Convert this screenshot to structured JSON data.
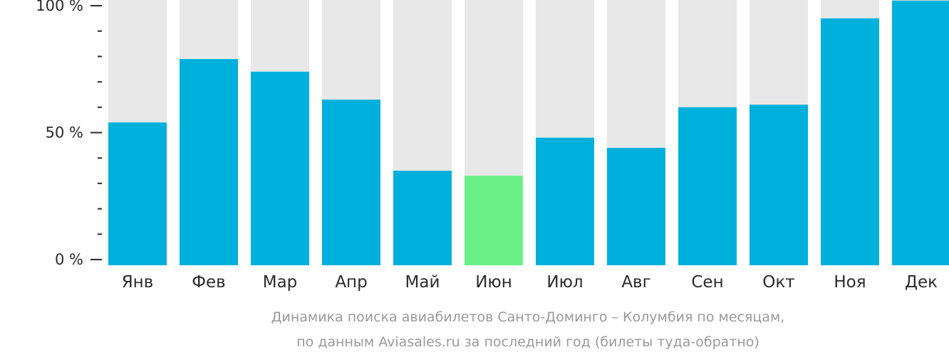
{
  "chart_data": {
    "type": "bar",
    "categories": [
      "Янв",
      "Фев",
      "Мар",
      "Апр",
      "Май",
      "Июн",
      "Июл",
      "Авг",
      "Сен",
      "Окт",
      "Ноя",
      "Дек"
    ],
    "values": [
      54,
      79,
      74,
      63,
      35,
      33,
      48,
      44,
      60,
      61,
      95,
      102
    ],
    "highlight_index": 5,
    "ylim": [
      0,
      100
    ],
    "y_ticks": [
      {
        "value": 100,
        "label": "100 %"
      },
      {
        "value": 50,
        "label": "50 %"
      },
      {
        "value": 0,
        "label": "0 %"
      }
    ],
    "y_minor_step": 10,
    "grid": false,
    "caption": [
      "Динамика поиска авиабилетов Санто-Доминго – Колумбия по месяцам,",
      "по данным Aviasales.ru за последний год (билеты туда-обратно)"
    ],
    "colors": {
      "bar": "#00b0dc",
      "highlight": "#6af086",
      "background_bar": "#e8e8e8",
      "axis": "#2b2b2b",
      "caption": "#9a9a9a"
    }
  }
}
